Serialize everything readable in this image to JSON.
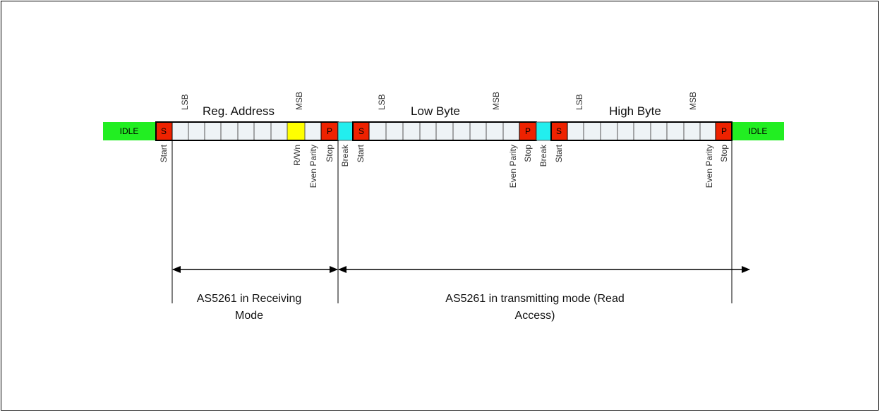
{
  "idle": {
    "left": "IDLE",
    "right": "IDLE"
  },
  "frames": [
    {
      "title": "Reg. Address",
      "lsb": "LSB",
      "msb": "MSB",
      "start": "S",
      "stop": "P"
    },
    {
      "title": "Low Byte",
      "lsb": "LSB",
      "msb": "MSB",
      "start": "S",
      "stop": "P"
    },
    {
      "title": "High Byte",
      "lsb": "LSB",
      "msb": "MSB",
      "start": "S",
      "stop": "P"
    }
  ],
  "bit_labels": {
    "start_1": "Start",
    "rwn": "R/Wn",
    "even_parity_1": "Even Parity",
    "stop_1": "Stop",
    "break_1": "Break",
    "start_2": "Start",
    "even_parity_2": "Even Parity",
    "stop_2": "Stop",
    "break_2": "Break",
    "start_3": "Start",
    "even_parity_3": "Even Parity",
    "stop_3": "Stop"
  },
  "modes": {
    "receiving": {
      "line1": "AS5261 in Receiving",
      "line2": "Mode"
    },
    "transmitting": {
      "line1": "AS5261 in transmitting mode (Read",
      "line2": "Access)"
    }
  },
  "colors": {
    "idle": "#22ee22",
    "start_stop": "#ee2200",
    "rwn": "#ffff00",
    "break": "#22eeee",
    "bit": "#eef3f6"
  }
}
